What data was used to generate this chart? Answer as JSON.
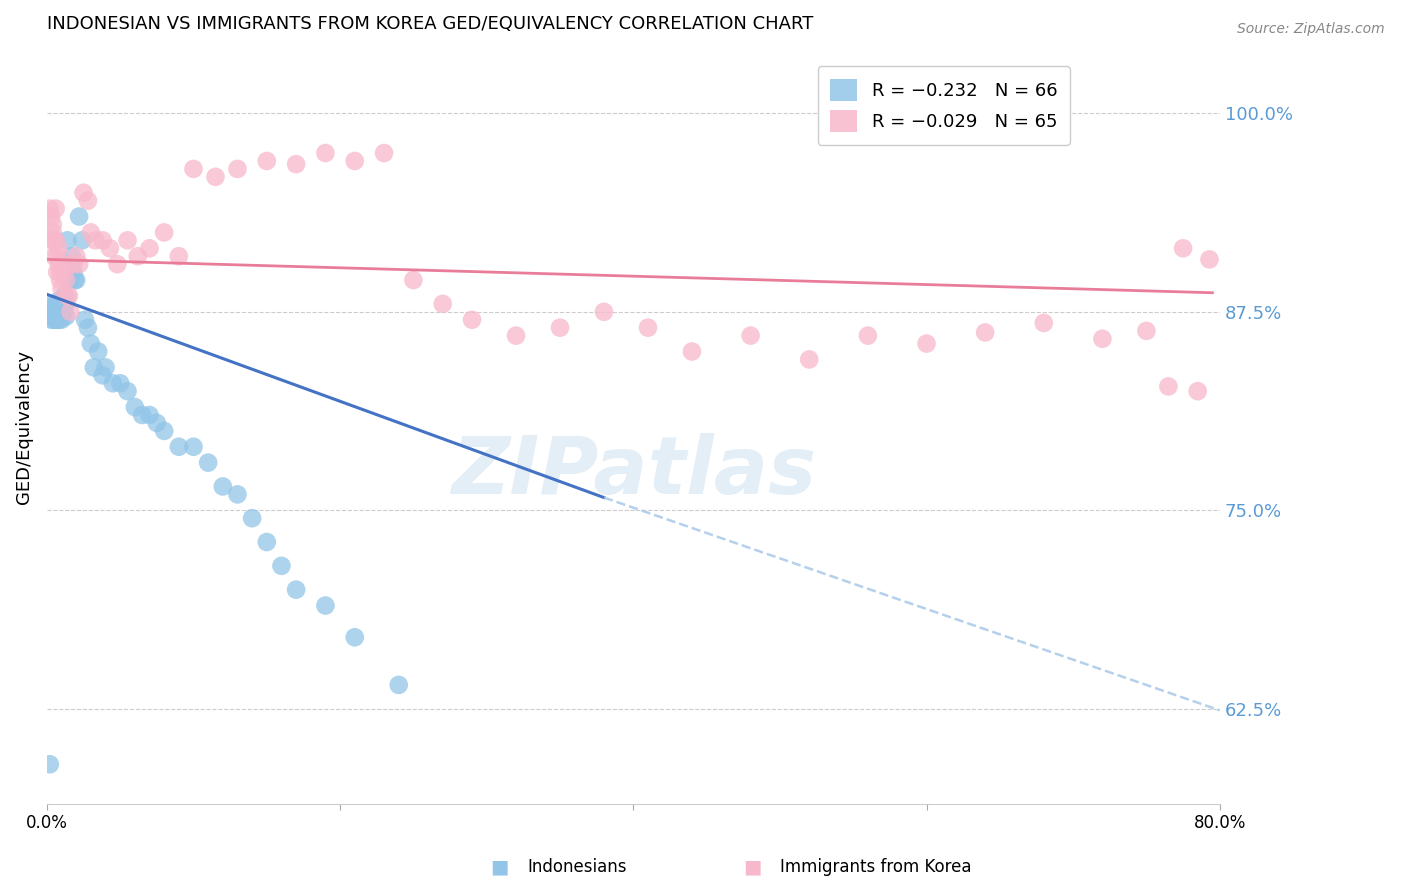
{
  "title": "INDONESIAN VS IMMIGRANTS FROM KOREA GED/EQUIVALENCY CORRELATION CHART",
  "source": "Source: ZipAtlas.com",
  "ylabel": "GED/Equivalency",
  "yticks": [
    0.625,
    0.75,
    0.875,
    1.0
  ],
  "ytick_labels": [
    "62.5%",
    "75.0%",
    "87.5%",
    "100.0%"
  ],
  "xmin": 0.0,
  "xmax": 0.8,
  "ymin": 0.565,
  "ymax": 1.04,
  "blue_color": "#92c5e8",
  "pink_color": "#f7b8cb",
  "blue_line_color": "#4472c4",
  "pink_line_color": "#e87c99",
  "dashed_line_color": "#a8c8e8",
  "legend_blue_label": "R = −0.232   N = 66",
  "legend_pink_label": "R = −0.029   N = 65",
  "watermark_text": "ZIPatlas",
  "blue_scatter_x": [
    0.002,
    0.003,
    0.003,
    0.004,
    0.004,
    0.004,
    0.005,
    0.005,
    0.005,
    0.006,
    0.006,
    0.006,
    0.007,
    0.007,
    0.007,
    0.008,
    0.008,
    0.008,
    0.009,
    0.009,
    0.009,
    0.01,
    0.01,
    0.01,
    0.011,
    0.011,
    0.012,
    0.012,
    0.013,
    0.013,
    0.014,
    0.015,
    0.016,
    0.017,
    0.018,
    0.019,
    0.02,
    0.022,
    0.024,
    0.026,
    0.028,
    0.03,
    0.032,
    0.035,
    0.038,
    0.04,
    0.045,
    0.05,
    0.055,
    0.06,
    0.065,
    0.07,
    0.075,
    0.08,
    0.09,
    0.1,
    0.11,
    0.12,
    0.13,
    0.14,
    0.15,
    0.16,
    0.17,
    0.19,
    0.21,
    0.24
  ],
  "blue_scatter_y": [
    0.59,
    0.875,
    0.87,
    0.88,
    0.875,
    0.872,
    0.878,
    0.87,
    0.875,
    0.88,
    0.87,
    0.875,
    0.878,
    0.872,
    0.87,
    0.882,
    0.875,
    0.87,
    0.875,
    0.878,
    0.872,
    0.88,
    0.875,
    0.87,
    0.882,
    0.875,
    0.885,
    0.878,
    0.88,
    0.872,
    0.92,
    0.905,
    0.895,
    0.91,
    0.9,
    0.895,
    0.895,
    0.935,
    0.92,
    0.87,
    0.865,
    0.855,
    0.84,
    0.85,
    0.835,
    0.84,
    0.83,
    0.83,
    0.825,
    0.815,
    0.81,
    0.81,
    0.805,
    0.8,
    0.79,
    0.79,
    0.78,
    0.765,
    0.76,
    0.745,
    0.73,
    0.715,
    0.7,
    0.69,
    0.67,
    0.64
  ],
  "pink_scatter_x": [
    0.002,
    0.003,
    0.003,
    0.004,
    0.004,
    0.005,
    0.005,
    0.006,
    0.006,
    0.007,
    0.007,
    0.008,
    0.008,
    0.009,
    0.009,
    0.01,
    0.011,
    0.012,
    0.013,
    0.014,
    0.015,
    0.016,
    0.018,
    0.02,
    0.022,
    0.025,
    0.028,
    0.03,
    0.033,
    0.038,
    0.043,
    0.048,
    0.055,
    0.062,
    0.07,
    0.08,
    0.09,
    0.1,
    0.115,
    0.13,
    0.15,
    0.17,
    0.19,
    0.21,
    0.23,
    0.25,
    0.27,
    0.29,
    0.32,
    0.35,
    0.38,
    0.41,
    0.44,
    0.48,
    0.52,
    0.56,
    0.6,
    0.64,
    0.68,
    0.72,
    0.75,
    0.765,
    0.775,
    0.785,
    0.793
  ],
  "pink_scatter_y": [
    0.94,
    0.935,
    0.92,
    0.93,
    0.925,
    0.92,
    0.91,
    0.94,
    0.92,
    0.91,
    0.9,
    0.915,
    0.905,
    0.9,
    0.895,
    0.89,
    0.905,
    0.9,
    0.895,
    0.885,
    0.885,
    0.875,
    0.905,
    0.91,
    0.905,
    0.95,
    0.945,
    0.925,
    0.92,
    0.92,
    0.915,
    0.905,
    0.92,
    0.91,
    0.915,
    0.925,
    0.91,
    0.965,
    0.96,
    0.965,
    0.97,
    0.968,
    0.975,
    0.97,
    0.975,
    0.895,
    0.88,
    0.87,
    0.86,
    0.865,
    0.875,
    0.865,
    0.85,
    0.86,
    0.845,
    0.86,
    0.855,
    0.862,
    0.868,
    0.858,
    0.863,
    0.828,
    0.915,
    0.825,
    0.908
  ],
  "blue_trend_x0": 0.0,
  "blue_trend_y0": 0.886,
  "blue_trend_x_solid_end": 0.38,
  "blue_trend_y_solid_end": 0.758,
  "blue_trend_x1": 0.8,
  "blue_trend_y1": 0.624,
  "pink_trend_x0": 0.0,
  "pink_trend_y0": 0.908,
  "pink_trend_x1": 0.795,
  "pink_trend_y1": 0.887
}
